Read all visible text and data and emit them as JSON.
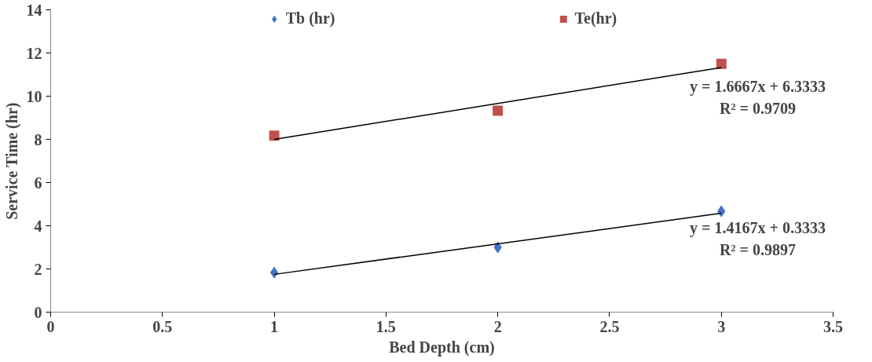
{
  "chart_data": {
    "type": "scatter",
    "xlabel": "Bed Depth (cm)",
    "ylabel": "Service Time (hr)",
    "xlim": [
      0,
      3.5
    ],
    "ylim": [
      0,
      14
    ],
    "xticks": [
      0,
      0.5,
      1,
      1.5,
      2,
      2.5,
      3,
      3.5
    ],
    "yticks": [
      0,
      2,
      4,
      6,
      8,
      10,
      12,
      14
    ],
    "grid": false,
    "legend": "top",
    "series": [
      {
        "name": "Tb (hr)",
        "color": "#4472c4",
        "marker": "diamond",
        "x": [
          1,
          2,
          3
        ],
        "values": [
          1.83,
          3.0,
          4.67
        ]
      },
      {
        "name": "Te(hr)",
        "color": "#c0504d",
        "marker": "square",
        "x": [
          1,
          2,
          3
        ],
        "values": [
          8.17,
          9.33,
          11.5
        ]
      },
      {
        "type": "line",
        "color": "#000000",
        "marker": "none",
        "x": [
          1,
          3
        ],
        "values": [
          8.0,
          11.33
        ]
      },
      {
        "type": "line",
        "color": "#000000",
        "marker": "none",
        "x": [
          1,
          3
        ],
        "values": [
          1.75,
          4.58
        ]
      }
    ],
    "annotations": [
      "y = 1.6667x + 6.3333",
      "R² = 0.9709",
      "y = 1.4167x + 0.3333",
      "R² = 0.9897"
    ]
  }
}
